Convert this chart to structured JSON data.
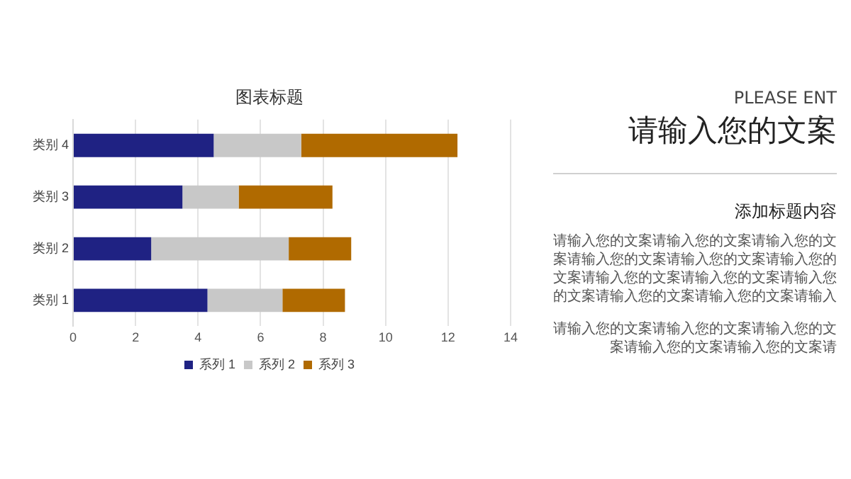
{
  "chart_data": [
    {
      "type": "bar",
      "title": "图表标题",
      "orientation": "horizontal",
      "stacked": true,
      "categories": [
        "类别 4",
        "类别 3",
        "类别 2",
        "类别 1"
      ],
      "series": [
        {
          "name": "系列 1",
          "color": "#1f2283",
          "values": [
            4.5,
            3.5,
            2.5,
            4.3
          ]
        },
        {
          "name": "系列 2",
          "color": "#c8c8c8",
          "values": [
            2.8,
            1.8,
            4.4,
            2.4
          ]
        },
        {
          "name": "系列 3",
          "color": "#b06a00",
          "values": [
            5,
            3,
            2,
            2
          ]
        }
      ],
      "xlim": [
        0,
        14
      ],
      "xticks": [
        0,
        2,
        4,
        6,
        8,
        10,
        12,
        14
      ],
      "grid": "x",
      "legend": "bottom"
    },
    {
      "type": "other",
      "subtitle": "PLEASE ENT",
      "title": "请输入您的文案",
      "annotations": [
        "添加标题内容",
        "请输入您的文案请输入您的文案请输入您的文案请输入您的文案请输入您的文案请输入您的文案请输入您的文案请输入您的文案请输入您的文案请输入您的文案请输入您的文案请输入",
        "请输入您的文案请输入您的文案请输入您的文案请输入您的文案请输入您的文案请"
      ]
    }
  ]
}
